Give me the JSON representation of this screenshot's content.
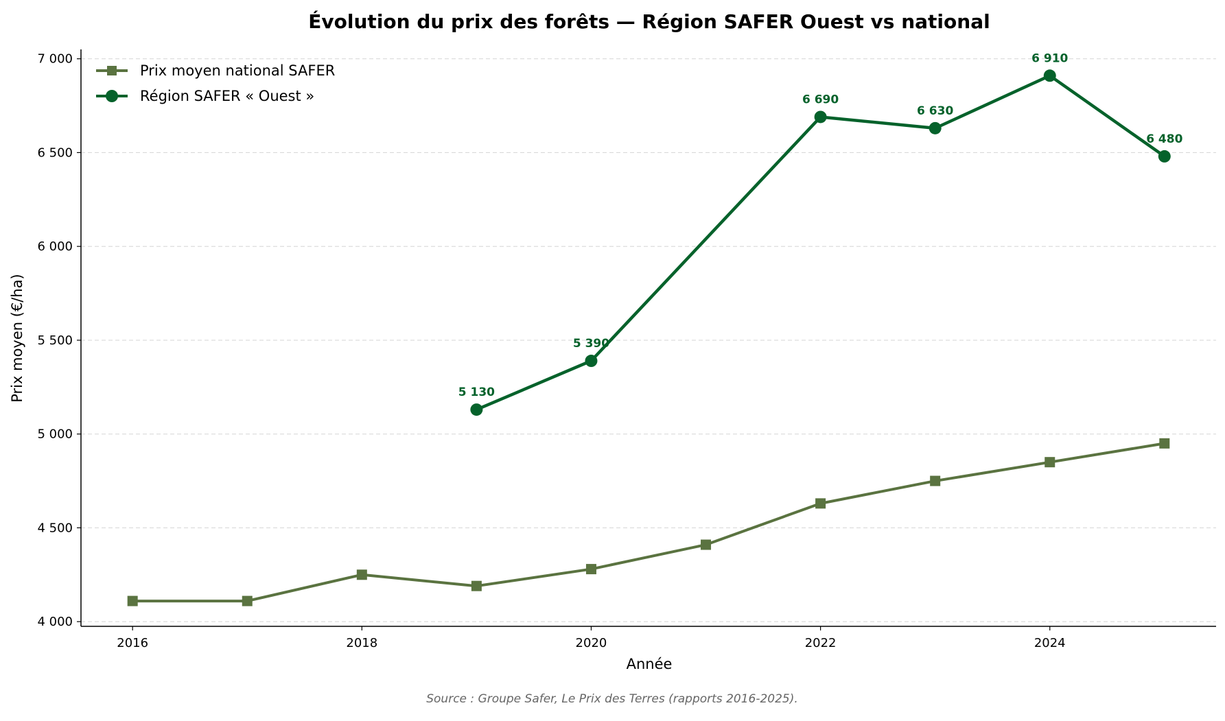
{
  "chart_data": {
    "type": "line",
    "title": "Évolution du prix des forêts — Région SAFER Ouest vs national",
    "xlabel": "Année",
    "ylabel": "Prix moyen (€/ha)",
    "xlim": [
      2015.55,
      2025.45
    ],
    "ylim": [
      3975,
      7050
    ],
    "xticks": [
      2016,
      2018,
      2020,
      2022,
      2024
    ],
    "yticks": [
      4000,
      4500,
      5000,
      5500,
      6000,
      6500,
      7000
    ],
    "xtick_labels": [
      "2016",
      "2018",
      "2020",
      "2022",
      "2024"
    ],
    "ytick_labels": [
      "4 000",
      "4 500",
      "5 000",
      "5 500",
      "6 000",
      "6 500",
      "7 000"
    ],
    "grid": "horizontal dashed",
    "legend_position": "top-left",
    "series": [
      {
        "name": "Prix moyen national SAFER",
        "color": "#5a7340",
        "marker": "square",
        "x": [
          2016,
          2017,
          2018,
          2019,
          2020,
          2021,
          2022,
          2023,
          2024,
          2025
        ],
        "values": [
          4110,
          4110,
          4250,
          4190,
          4280,
          4410,
          4630,
          4750,
          4850,
          4950
        ]
      },
      {
        "name": "Région SAFER « Ouest »",
        "color": "#05622b",
        "marker": "circle",
        "x": [
          2019,
          2020,
          2022,
          2023,
          2024,
          2025
        ],
        "values": [
          5130,
          5390,
          6690,
          6630,
          6910,
          6480
        ],
        "labels": [
          "5 130",
          "5 390",
          "6 690",
          "6 630",
          "6 910",
          "6 480"
        ]
      }
    ],
    "source": "Source : Groupe Safer, Le Prix des Terres (rapports 2016-2025)."
  }
}
